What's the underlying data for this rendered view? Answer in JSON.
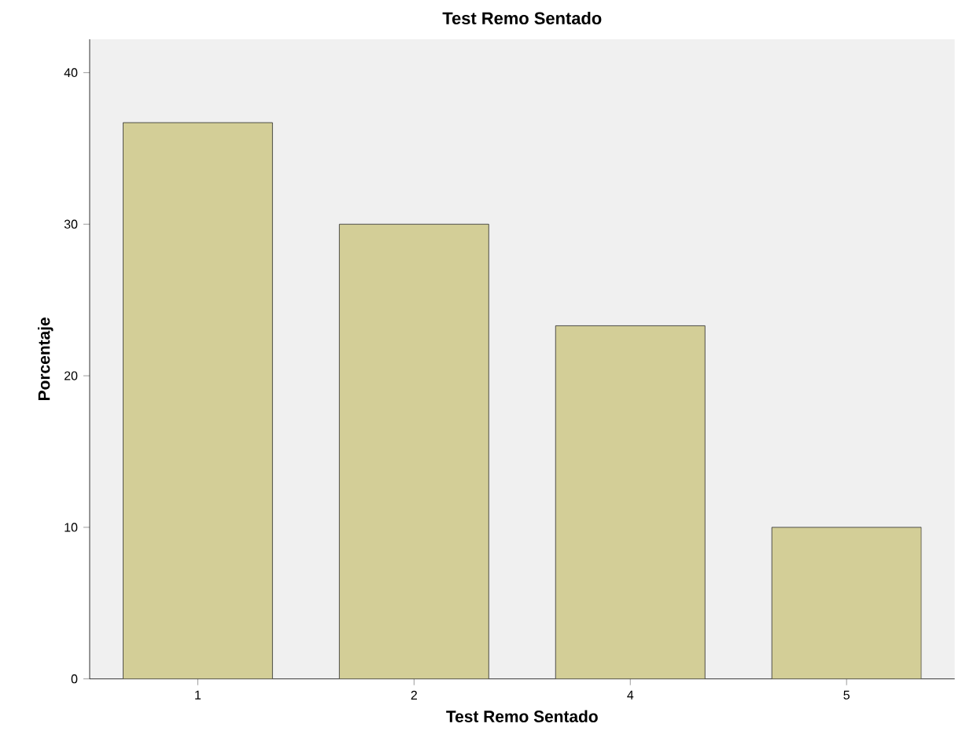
{
  "chart_data": {
    "type": "bar",
    "title": "Test Remo Sentado",
    "xlabel": "Test Remo Sentado",
    "ylabel": "Porcentaje",
    "categories": [
      "1",
      "2",
      "4",
      "5"
    ],
    "values": [
      36.7,
      30.0,
      23.3,
      10.0
    ],
    "color": "#d3ce97",
    "ylim": [
      0,
      42.2
    ],
    "yticks": [
      0,
      10,
      20,
      30,
      40
    ],
    "grid": false
  }
}
